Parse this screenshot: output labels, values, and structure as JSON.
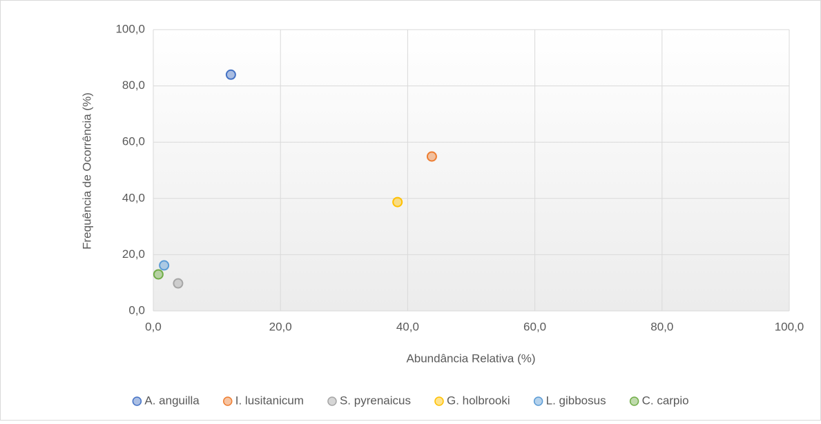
{
  "chart_data": {
    "type": "scatter",
    "x_label": "Abundância Relativa (%)",
    "y_label": "Frequência de Ocorrência (%)",
    "xlim": [
      0,
      100
    ],
    "ylim": [
      0,
      100
    ],
    "xticks": [
      {
        "value": 0,
        "label": "0,0"
      },
      {
        "value": 20,
        "label": "20,0"
      },
      {
        "value": 40,
        "label": "40,0"
      },
      {
        "value": 60,
        "label": "60,0"
      },
      {
        "value": 80,
        "label": "80,0"
      },
      {
        "value": 100,
        "label": "100,0"
      }
    ],
    "yticks": [
      {
        "value": 0,
        "label": "0,0"
      },
      {
        "value": 20,
        "label": "20,0"
      },
      {
        "value": 40,
        "label": "40,0"
      },
      {
        "value": 60,
        "label": "60,0"
      },
      {
        "value": 80,
        "label": "80,0"
      },
      {
        "value": 100,
        "label": "100,0"
      }
    ],
    "grid": true,
    "legend": "bottom",
    "series": [
      {
        "name": "A. anguilla",
        "color": "#4472c4",
        "x": [
          12.2
        ],
        "values": [
          84.0
        ]
      },
      {
        "name": "I. lusitanicum",
        "color": "#ed7d31",
        "x": [
          43.8
        ],
        "values": [
          54.9
        ]
      },
      {
        "name": "S. pyrenaicus",
        "color": "#a5a5a5",
        "x": [
          3.9
        ],
        "values": [
          9.8
        ]
      },
      {
        "name": "G. holbrooki",
        "color": "#ffc000",
        "x": [
          38.4
        ],
        "values": [
          38.7
        ]
      },
      {
        "name": "L. gibbosus",
        "color": "#5b9bd5",
        "x": [
          1.7
        ],
        "values": [
          16.2
        ]
      },
      {
        "name": "C. carpio",
        "color": "#70ad47",
        "x": [
          0.8
        ],
        "values": [
          13.0
        ]
      }
    ]
  }
}
